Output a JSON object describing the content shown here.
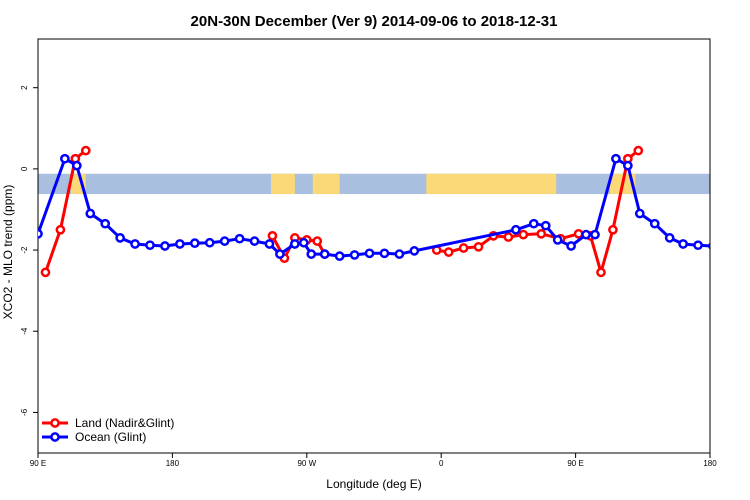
{
  "chart_data": {
    "type": "line",
    "title": "20N-30N December (Ver 9)   2014-09-06 to 2018-12-31",
    "xlabel": "Longitude (deg E)",
    "ylabel": "XCO2 - MLO trend (ppm)",
    "xlim": [
      90,
      540
    ],
    "ylim": [
      -7,
      3.2
    ],
    "x_ticks": [
      {
        "value": 90,
        "label": "90 E"
      },
      {
        "value": 180,
        "label": "180"
      },
      {
        "value": 270,
        "label": "90 W"
      },
      {
        "value": 360,
        "label": "0"
      },
      {
        "value": 450,
        "label": "90 E"
      },
      {
        "value": 540,
        "label": "180"
      }
    ],
    "y_ticks": [
      {
        "value": -6,
        "label": "-6"
      },
      {
        "value": -4,
        "label": "-4"
      },
      {
        "value": -2,
        "label": "-2"
      },
      {
        "value": 0,
        "label": "0"
      },
      {
        "value": 2,
        "label": "2"
      }
    ],
    "land_ocean_band": {
      "y_range": [
        -0.62,
        -0.12
      ],
      "ocean_color": "#a8bfdf",
      "land_color": "#fbd978",
      "land_segments": [
        [
          112,
          122
        ],
        [
          246,
          262
        ],
        [
          274,
          292
        ],
        [
          350,
          437
        ],
        [
          473,
          490
        ]
      ]
    },
    "series": [
      {
        "name": "Land (Nadir&Glint)",
        "color": "#ff0000",
        "points": [
          [
            95,
            -2.55
          ],
          [
            105,
            -1.5
          ],
          [
            115,
            0.25
          ],
          [
            122,
            0.45
          ],
          null,
          [
            247,
            -1.65
          ],
          [
            255,
            -2.2
          ],
          [
            262,
            -1.7
          ],
          [
            270,
            -1.75
          ],
          [
            277,
            -1.78
          ],
          [
            282,
            -2.1
          ],
          null,
          [
            357,
            -2.0
          ],
          [
            365,
            -2.05
          ],
          [
            375,
            -1.95
          ],
          [
            385,
            -1.92
          ],
          [
            395,
            -1.65
          ],
          [
            405,
            -1.68
          ],
          [
            415,
            -1.62
          ],
          [
            427,
            -1.6
          ],
          [
            440,
            -1.72
          ],
          [
            452,
            -1.6
          ],
          [
            460,
            -1.65
          ],
          [
            467,
            -2.55
          ],
          [
            475,
            -1.5
          ],
          [
            485,
            0.25
          ],
          [
            492,
            0.45
          ]
        ]
      },
      {
        "name": "Ocean (Glint)",
        "color": "#0000ff",
        "points": [
          [
            90,
            -1.6
          ],
          [
            108,
            0.25
          ],
          [
            116,
            0.08
          ],
          [
            125,
            -1.1
          ],
          [
            135,
            -1.35
          ],
          [
            145,
            -1.7
          ],
          [
            155,
            -1.85
          ],
          [
            165,
            -1.88
          ],
          [
            175,
            -1.9
          ],
          [
            185,
            -1.85
          ],
          [
            195,
            -1.83
          ],
          [
            205,
            -1.82
          ],
          [
            215,
            -1.78
          ],
          [
            225,
            -1.72
          ],
          [
            235,
            -1.78
          ],
          [
            245,
            -1.85
          ],
          [
            252,
            -2.1
          ],
          [
            262,
            -1.85
          ],
          [
            268,
            -1.82
          ],
          [
            273,
            -2.1
          ],
          [
            282,
            -2.1
          ],
          [
            292,
            -2.15
          ],
          [
            302,
            -2.12
          ],
          [
            312,
            -2.08
          ],
          [
            322,
            -2.08
          ],
          [
            332,
            -2.1
          ],
          [
            342,
            -2.02
          ],
          [
            410,
            -1.5
          ],
          [
            422,
            -1.35
          ],
          [
            430,
            -1.4
          ],
          [
            438,
            -1.75
          ],
          [
            447,
            -1.9
          ],
          [
            457,
            -1.62
          ],
          [
            463,
            -1.62
          ],
          [
            477,
            0.25
          ],
          [
            485,
            0.08
          ],
          [
            493,
            -1.1
          ],
          [
            503,
            -1.35
          ],
          [
            513,
            -1.7
          ],
          [
            522,
            -1.85
          ],
          [
            532,
            -1.88
          ],
          [
            542,
            -1.9
          ]
        ]
      }
    ]
  }
}
